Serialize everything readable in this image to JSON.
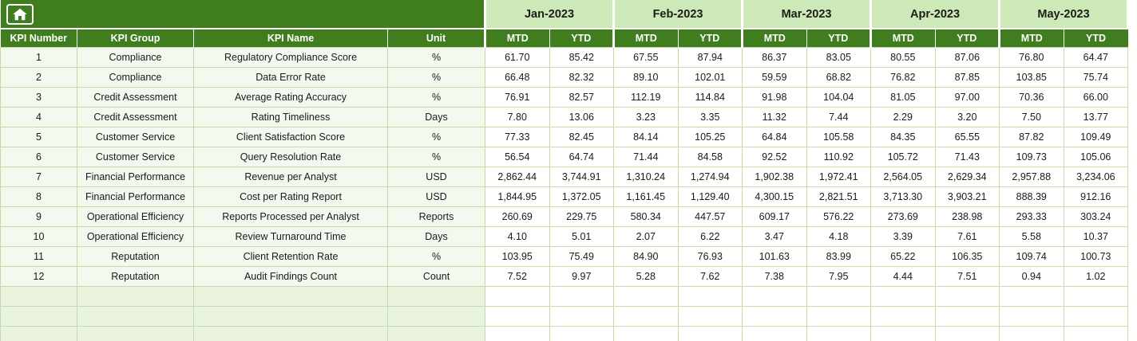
{
  "colors": {
    "header_dark_green": "#3f7d1f",
    "header_light_green": "#cde9b7",
    "grid_border": "#c2dcaa",
    "empty_row_tint": "#e9f3dd"
  },
  "table": {
    "home_icon": "home-icon",
    "months": [
      "Jan-2023",
      "Feb-2023",
      "Mar-2023",
      "Apr-2023",
      "May-2023"
    ],
    "sub_headers": [
      "MTD",
      "YTD"
    ],
    "left_headers": [
      "KPI Number",
      "KPI Group",
      "KPI Name",
      "Unit"
    ],
    "rows": [
      {
        "number": "1",
        "group": "Compliance",
        "name": "Regulatory Compliance Score",
        "unit": "%",
        "values": [
          "61.70",
          "85.42",
          "67.55",
          "87.94",
          "86.37",
          "83.05",
          "80.55",
          "87.06",
          "76.80",
          "64.47"
        ]
      },
      {
        "number": "2",
        "group": "Compliance",
        "name": "Data Error Rate",
        "unit": "%",
        "values": [
          "66.48",
          "82.32",
          "89.10",
          "102.01",
          "59.59",
          "68.82",
          "76.82",
          "87.85",
          "103.85",
          "75.74"
        ]
      },
      {
        "number": "3",
        "group": "Credit Assessment",
        "name": "Average Rating Accuracy",
        "unit": "%",
        "values": [
          "76.91",
          "82.57",
          "112.19",
          "114.84",
          "91.98",
          "104.04",
          "81.05",
          "97.00",
          "70.36",
          "66.00"
        ]
      },
      {
        "number": "4",
        "group": "Credit Assessment",
        "name": "Rating Timeliness",
        "unit": "Days",
        "values": [
          "7.80",
          "13.06",
          "3.23",
          "3.35",
          "11.32",
          "7.44",
          "2.29",
          "3.20",
          "7.50",
          "13.77"
        ]
      },
      {
        "number": "5",
        "group": "Customer Service",
        "name": "Client Satisfaction Score",
        "unit": "%",
        "values": [
          "77.33",
          "82.45",
          "84.14",
          "105.25",
          "64.84",
          "105.58",
          "84.35",
          "65.55",
          "87.82",
          "109.49"
        ]
      },
      {
        "number": "6",
        "group": "Customer Service",
        "name": "Query Resolution Rate",
        "unit": "%",
        "values": [
          "56.54",
          "64.74",
          "71.44",
          "84.58",
          "92.52",
          "110.92",
          "105.72",
          "71.43",
          "109.73",
          "105.06"
        ]
      },
      {
        "number": "7",
        "group": "Financial Performance",
        "name": "Revenue per Analyst",
        "unit": "USD",
        "values": [
          "2,862.44",
          "3,744.91",
          "1,310.24",
          "1,274.94",
          "1,902.38",
          "1,972.41",
          "2,564.05",
          "2,629.34",
          "2,957.88",
          "3,234.06"
        ]
      },
      {
        "number": "8",
        "group": "Financial Performance",
        "name": "Cost per Rating Report",
        "unit": "USD",
        "values": [
          "1,844.95",
          "1,372.05",
          "1,161.45",
          "1,129.40",
          "4,300.15",
          "2,821.51",
          "3,713.30",
          "3,903.21",
          "888.39",
          "912.16"
        ]
      },
      {
        "number": "9",
        "group": "Operational Efficiency",
        "name": "Reports Processed per Analyst",
        "unit": "Reports",
        "values": [
          "260.69",
          "229.75",
          "580.34",
          "447.57",
          "609.17",
          "576.22",
          "273.69",
          "238.98",
          "293.33",
          "303.24"
        ]
      },
      {
        "number": "10",
        "group": "Operational Efficiency",
        "name": "Review Turnaround Time",
        "unit": "Days",
        "values": [
          "4.10",
          "5.01",
          "2.07",
          "6.22",
          "3.47",
          "4.18",
          "3.39",
          "7.61",
          "5.58",
          "10.37"
        ]
      },
      {
        "number": "11",
        "group": "Reputation",
        "name": "Client Retention Rate",
        "unit": "%",
        "values": [
          "103.95",
          "75.49",
          "84.90",
          "76.93",
          "101.63",
          "83.99",
          "65.22",
          "106.35",
          "109.74",
          "100.73"
        ]
      },
      {
        "number": "12",
        "group": "Reputation",
        "name": "Audit Findings Count",
        "unit": "Count",
        "values": [
          "7.52",
          "9.97",
          "5.28",
          "7.62",
          "7.38",
          "7.95",
          "4.44",
          "7.51",
          "0.94",
          "1.02"
        ]
      }
    ],
    "empty_row_count": 3
  }
}
